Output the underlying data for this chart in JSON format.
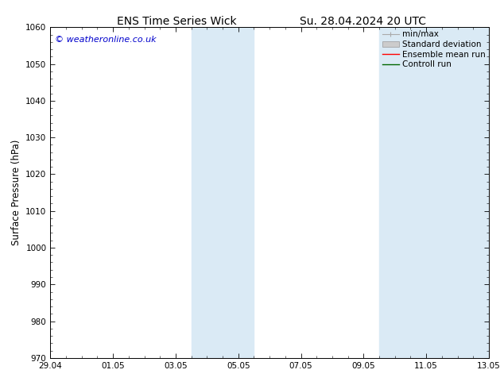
{
  "title_left": "ENS Time Series Wick",
  "title_right": "Su. 28.04.2024 20 UTC",
  "ylabel": "Surface Pressure (hPa)",
  "ylim": [
    970,
    1060
  ],
  "yticks": [
    970,
    980,
    990,
    1000,
    1010,
    1020,
    1030,
    1040,
    1050,
    1060
  ],
  "x_tick_positions": [
    0,
    2,
    4,
    6,
    8,
    10,
    12,
    14
  ],
  "xlabel_ticks": [
    "29.04",
    "01.05",
    "03.05",
    "05.05",
    "07.05",
    "09.05",
    "11.05",
    "13.05"
  ],
  "xlim": [
    0,
    14
  ],
  "watermark": "© weatheronline.co.uk",
  "watermark_color": "#0000cc",
  "background_color": "#ffffff",
  "plot_bg_color": "#ffffff",
  "shaded_bands": [
    {
      "x_start": 4.5,
      "x_end": 6.5
    },
    {
      "x_start": 10.5,
      "x_end": 14.0
    }
  ],
  "shaded_color": "#daeaf5",
  "title_fontsize": 10,
  "tick_fontsize": 7.5,
  "ylabel_fontsize": 8.5,
  "watermark_fontsize": 8,
  "legend_fontsize": 7.5
}
